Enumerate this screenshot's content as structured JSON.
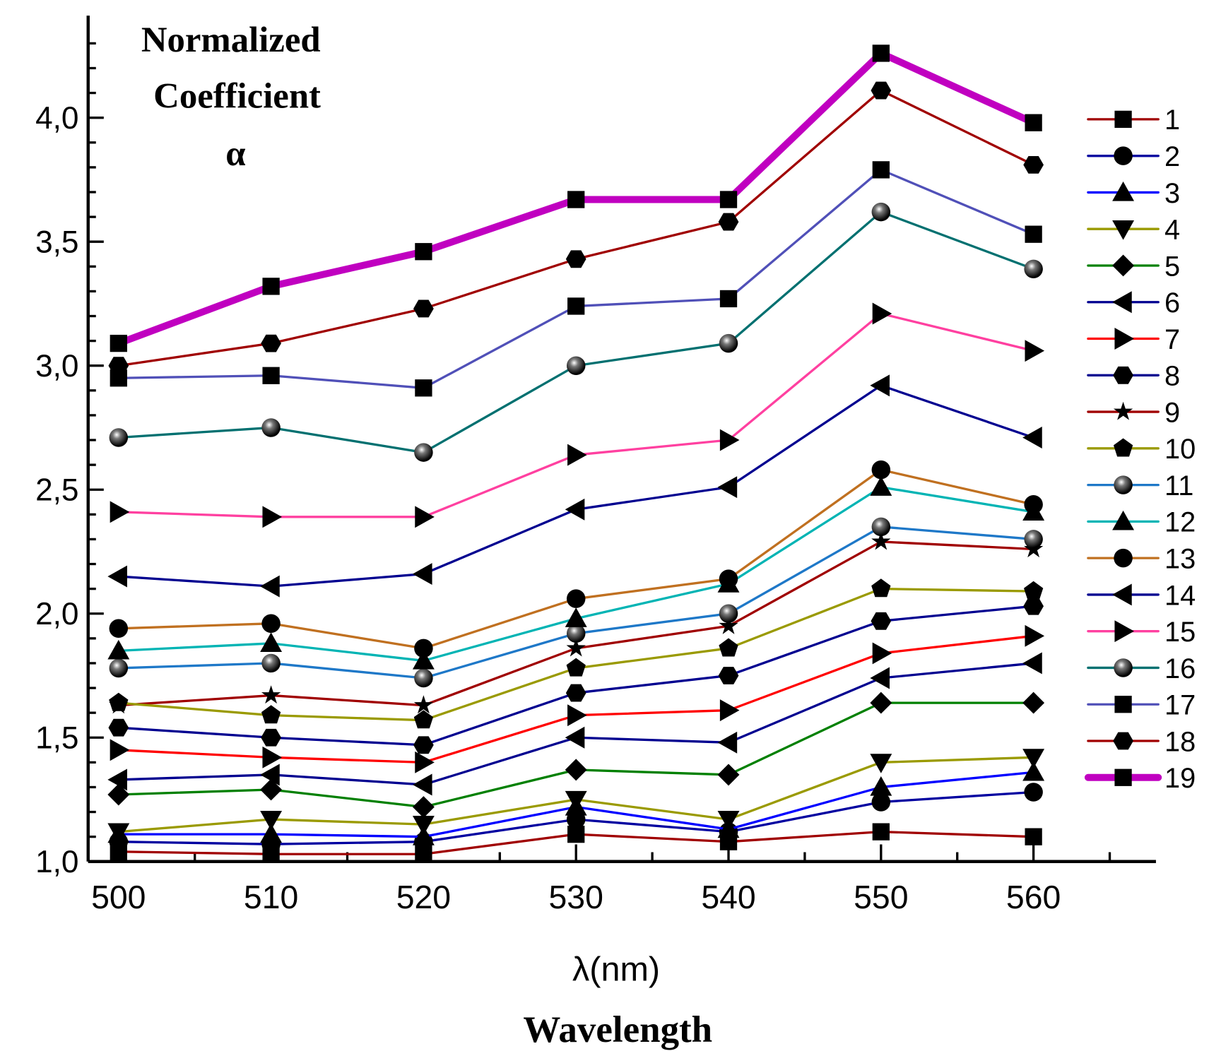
{
  "chart_data": {
    "type": "line",
    "title_lines": [
      "Normalized",
      "Coefficient",
      "α"
    ],
    "xlabel": "λ(nm)",
    "xlabel2": "Wavelength",
    "ylabel": "",
    "x": [
      500,
      510,
      520,
      530,
      540,
      550,
      560
    ],
    "xlim": [
      498,
      568
    ],
    "ylim": [
      1.0,
      4.4
    ],
    "xticks": [
      "500",
      "510",
      "520",
      "530",
      "540",
      "550",
      "560"
    ],
    "yticks": [
      {
        "value": 1.0,
        "label": "1,0"
      },
      {
        "value": 1.5,
        "label": "1,5"
      },
      {
        "value": 2.0,
        "label": "2,0"
      },
      {
        "value": 2.5,
        "label": "2,5"
      },
      {
        "value": 3.0,
        "label": "3,0"
      },
      {
        "value": 3.5,
        "label": "3,5"
      },
      {
        "value": 4.0,
        "label": "4,0"
      }
    ],
    "grid": false,
    "legend_position": "right",
    "series": [
      {
        "name": "1",
        "color": "#a00000",
        "marker": "square",
        "values": [
          1.04,
          1.03,
          1.03,
          1.11,
          1.08,
          1.12,
          1.1
        ]
      },
      {
        "name": "2",
        "color": "#0000a0",
        "marker": "circle",
        "values": [
          1.08,
          1.07,
          1.08,
          1.17,
          1.12,
          1.24,
          1.28
        ]
      },
      {
        "name": "3",
        "color": "#0000ff",
        "marker": "tri-up",
        "values": [
          1.11,
          1.11,
          1.1,
          1.22,
          1.13,
          1.3,
          1.36
        ]
      },
      {
        "name": "4",
        "color": "#9a9a00",
        "marker": "tri-down",
        "values": [
          1.12,
          1.17,
          1.15,
          1.25,
          1.17,
          1.4,
          1.42
        ]
      },
      {
        "name": "5",
        "color": "#008000",
        "marker": "diamond",
        "values": [
          1.27,
          1.29,
          1.22,
          1.37,
          1.35,
          1.64,
          1.64
        ]
      },
      {
        "name": "6",
        "color": "#000090",
        "marker": "tri-left",
        "values": [
          1.33,
          1.35,
          1.31,
          1.5,
          1.48,
          1.74,
          1.8
        ]
      },
      {
        "name": "7",
        "color": "#ff0000",
        "marker": "tri-right",
        "values": [
          1.45,
          1.42,
          1.4,
          1.59,
          1.61,
          1.84,
          1.91
        ]
      },
      {
        "name": "8",
        "color": "#000090",
        "marker": "hexagon",
        "values": [
          1.54,
          1.5,
          1.47,
          1.68,
          1.75,
          1.97,
          2.03
        ]
      },
      {
        "name": "9",
        "color": "#a00000",
        "marker": "star",
        "values": [
          1.63,
          1.67,
          1.63,
          1.86,
          1.95,
          2.29,
          2.26
        ]
      },
      {
        "name": "10",
        "color": "#9a9a00",
        "marker": "pentagon",
        "values": [
          1.64,
          1.59,
          1.57,
          1.78,
          1.86,
          2.1,
          2.09
        ]
      },
      {
        "name": "11",
        "color": "#1e78c8",
        "marker": "sphere",
        "values": [
          1.78,
          1.8,
          1.74,
          1.92,
          2.0,
          2.35,
          2.3
        ]
      },
      {
        "name": "12",
        "color": "#00b4b4",
        "marker": "tri-up",
        "values": [
          1.85,
          1.88,
          1.81,
          1.98,
          2.12,
          2.51,
          2.41
        ]
      },
      {
        "name": "13",
        "color": "#c07020",
        "marker": "circle",
        "values": [
          1.94,
          1.96,
          1.86,
          2.06,
          2.14,
          2.58,
          2.44
        ]
      },
      {
        "name": "14",
        "color": "#000090",
        "marker": "tri-left",
        "values": [
          2.15,
          2.11,
          2.16,
          2.42,
          2.51,
          2.92,
          2.71
        ]
      },
      {
        "name": "15",
        "color": "#ff40a0",
        "marker": "tri-right",
        "values": [
          2.41,
          2.39,
          2.39,
          2.64,
          2.7,
          3.21,
          3.06
        ]
      },
      {
        "name": "16",
        "color": "#007070",
        "marker": "sphere",
        "values": [
          2.71,
          2.75,
          2.65,
          3.0,
          3.09,
          3.62,
          3.39
        ]
      },
      {
        "name": "17",
        "color": "#5050b8",
        "marker": "square",
        "values": [
          2.95,
          2.96,
          2.91,
          3.24,
          3.27,
          3.79,
          3.53
        ]
      },
      {
        "name": "18",
        "color": "#a00000",
        "marker": "hexagon",
        "values": [
          3.0,
          3.09,
          3.23,
          3.43,
          3.58,
          4.11,
          3.81
        ]
      },
      {
        "name": "19",
        "color": "#c000c0",
        "marker": "square",
        "values": [
          3.09,
          3.32,
          3.46,
          3.67,
          3.67,
          4.26,
          3.98
        ],
        "thick": true
      }
    ]
  }
}
